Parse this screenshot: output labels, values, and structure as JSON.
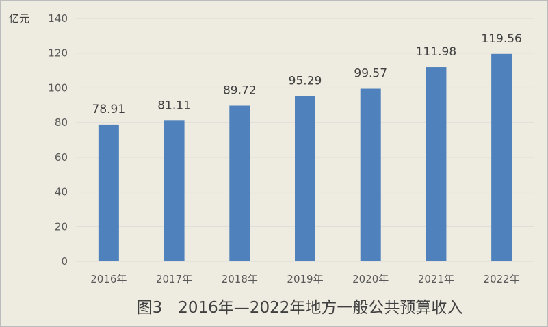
{
  "chart_data": {
    "type": "bar",
    "title": "图3　2016年—2022年地方一般公共预算收入",
    "ylabel": "亿元",
    "xlabel": "",
    "categories": [
      "2016年",
      "2017年",
      "2018年",
      "2019年",
      "2020年",
      "2021年",
      "2022年"
    ],
    "values": [
      78.91,
      81.11,
      89.72,
      95.29,
      99.57,
      111.98,
      119.56
    ],
    "value_labels": [
      "78.91",
      "81.11",
      "89.72",
      "95.29",
      "99.57",
      "111.98",
      "119.56"
    ],
    "ylim": [
      0,
      140
    ],
    "y_ticks": [
      "0",
      "20",
      "40",
      "60",
      "80",
      "100",
      "120",
      "140"
    ],
    "grid": true,
    "bar_color": "#4f81bd",
    "grid_color": "#d9d9d9",
    "background_color": "#eeebe0"
  }
}
